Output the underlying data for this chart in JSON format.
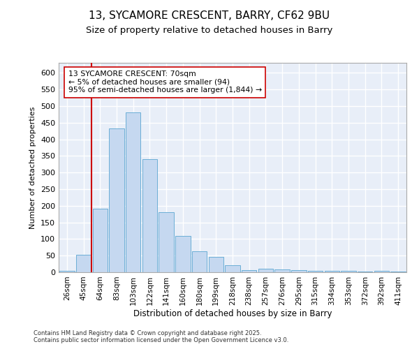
{
  "title_line1": "13, SYCAMORE CRESCENT, BARRY, CF62 9BU",
  "title_line2": "Size of property relative to detached houses in Barry",
  "xlabel": "Distribution of detached houses by size in Barry",
  "ylabel": "Number of detached properties",
  "categories": [
    "26sqm",
    "45sqm",
    "64sqm",
    "83sqm",
    "103sqm",
    "122sqm",
    "141sqm",
    "160sqm",
    "180sqm",
    "199sqm",
    "218sqm",
    "238sqm",
    "257sqm",
    "276sqm",
    "295sqm",
    "315sqm",
    "334sqm",
    "353sqm",
    "372sqm",
    "392sqm",
    "411sqm"
  ],
  "values": [
    5,
    52,
    192,
    433,
    480,
    340,
    180,
    110,
    62,
    47,
    22,
    7,
    10,
    9,
    6,
    5,
    4,
    4,
    3,
    5,
    3
  ],
  "bar_color": "#c5d8f0",
  "bar_edge_color": "#6baed6",
  "vline_color": "#cc0000",
  "vline_x": 1.5,
  "annotation_text": "13 SYCAMORE CRESCENT: 70sqm\n← 5% of detached houses are smaller (94)\n95% of semi-detached houses are larger (1,844) →",
  "ylim_max": 630,
  "yticks": [
    0,
    50,
    100,
    150,
    200,
    250,
    300,
    350,
    400,
    450,
    500,
    550,
    600
  ],
  "background_color": "#e8eef8",
  "grid_color": "#ffffff",
  "footer_text": "Contains HM Land Registry data © Crown copyright and database right 2025.\nContains public sector information licensed under the Open Government Licence v3.0."
}
